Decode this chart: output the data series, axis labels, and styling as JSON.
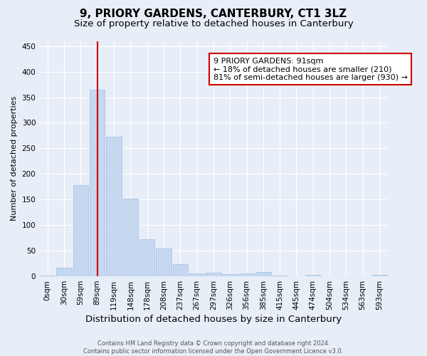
{
  "title": "9, PRIORY GARDENS, CANTERBURY, CT1 3LZ",
  "subtitle": "Size of property relative to detached houses in Canterbury",
  "xlabel": "Distribution of detached houses by size in Canterbury",
  "ylabel": "Number of detached properties",
  "footer_line1": "Contains HM Land Registry data © Crown copyright and database right 2024.",
  "footer_line2": "Contains public sector information licensed under the Open Government Licence v3.0.",
  "bar_color": "#c5d8f0",
  "bar_edgecolor": "#a8c4e0",
  "vline_color": "#cc0000",
  "vline_value": 3,
  "annotation_title": "9 PRIORY GARDENS: 91sqm",
  "annotation_line2": "← 18% of detached houses are smaller (210)",
  "annotation_line3": "81% of semi-detached houses are larger (930) →",
  "annotation_box_edgecolor": "#cc0000",
  "annotation_box_facecolor": "#ffffff",
  "categories": [
    "0sqm",
    "30sqm",
    "59sqm",
    "89sqm",
    "119sqm",
    "148sqm",
    "178sqm",
    "208sqm",
    "237sqm",
    "267sqm",
    "297sqm",
    "326sqm",
    "356sqm",
    "385sqm",
    "415sqm",
    "445sqm",
    "474sqm",
    "504sqm",
    "534sqm",
    "563sqm",
    "593sqm"
  ],
  "values": [
    2,
    17,
    178,
    365,
    273,
    152,
    72,
    54,
    24,
    5,
    7,
    4,
    6,
    8,
    1,
    0,
    3,
    0,
    0,
    0,
    3
  ],
  "ylim": [
    0,
    460
  ],
  "yticks": [
    0,
    50,
    100,
    150,
    200,
    250,
    300,
    350,
    400,
    450
  ],
  "background_color": "#e8eef8",
  "plot_background_color": "#e8eef8",
  "title_fontsize": 11,
  "subtitle_fontsize": 9.5,
  "ylabel_fontsize": 8,
  "xlabel_fontsize": 9.5,
  "tick_fontsize": 7.5,
  "footer_fontsize": 6
}
